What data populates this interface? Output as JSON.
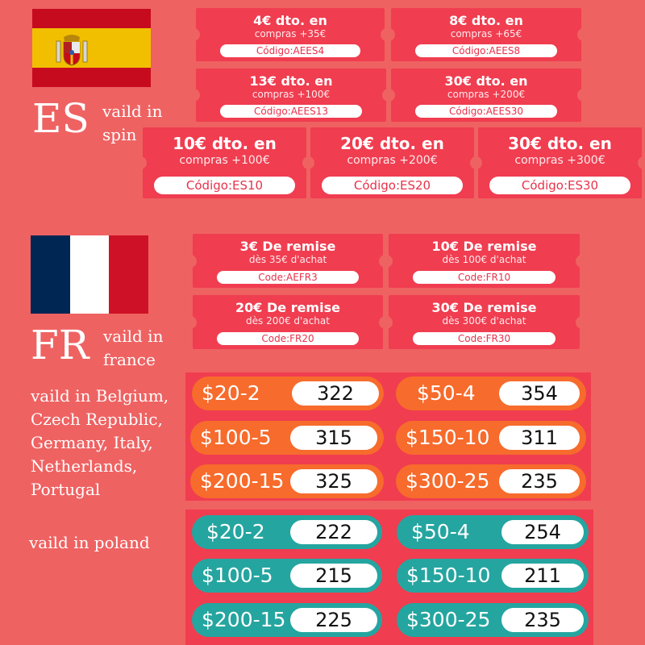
{
  "colors": {
    "background": "#ef6262",
    "coupon_red": "#f03d50",
    "orange_pill": "#f76b2c",
    "teal_pill": "#25a5a0",
    "es_red": "#c60b1e",
    "es_yellow": "#f1bf00",
    "fr_blue": "#002654",
    "fr_white": "#ffffff",
    "fr_red": "#ce1126"
  },
  "spain": {
    "country_code": "ES",
    "valid_text": "vaild in\nspin",
    "coupons_small": [
      {
        "title": "4€ dto. en",
        "subtitle": "compras +35€",
        "code": "Código:AEES4"
      },
      {
        "title": "8€ dto. en",
        "subtitle": "compras +65€",
        "code": "Código:AEES8"
      },
      {
        "title": "13€ dto. en",
        "subtitle": "compras +100€",
        "code": "Código:AEES13"
      },
      {
        "title": "30€ dto. en",
        "subtitle": "compras +200€",
        "code": "Código:AEES30"
      }
    ],
    "coupons_large": [
      {
        "title": "10€ dto. en",
        "subtitle": "compras +100€",
        "code": "Código:ES10"
      },
      {
        "title": "20€ dto. en",
        "subtitle": "compras +200€",
        "code": "Código:ES20"
      },
      {
        "title": "30€ dto. en",
        "subtitle": "compras +300€",
        "code": "Código:ES30"
      }
    ]
  },
  "france": {
    "country_code": "FR",
    "valid_text": "vaild in\nfrance",
    "coupons": [
      {
        "title": "3€ De remise",
        "subtitle": "dès 35€ d'achat",
        "code": "Code:AEFR3"
      },
      {
        "title": "10€ De remise",
        "subtitle": "dès 100€ d'achat",
        "code": "Code:FR10"
      },
      {
        "title": "20€ De remise",
        "subtitle": "dès 200€ d'achat",
        "code": "Code:FR20"
      },
      {
        "title": "30€ De remise",
        "subtitle": "dès 300€ d'achat",
        "code": "Code:FR30"
      }
    ]
  },
  "europe": {
    "valid_text": "vaild in Belgium,\nCzech Republic,\nGermany, Italy,\nNetherlands,\nPortugal",
    "codes": [
      {
        "range": "$20-2",
        "code": "322"
      },
      {
        "range": "$50-4",
        "code": "354"
      },
      {
        "range": "$100-5",
        "code": "315"
      },
      {
        "range": "$150-10",
        "code": "311"
      },
      {
        "range": "$200-15",
        "code": "325"
      },
      {
        "range": "$300-25",
        "code": "235"
      }
    ]
  },
  "poland": {
    "valid_text": "vaild in poland",
    "codes": [
      {
        "range": "$20-2",
        "code": "222"
      },
      {
        "range": "$50-4",
        "code": "254"
      },
      {
        "range": "$100-5",
        "code": "215"
      },
      {
        "range": "$150-10",
        "code": "211"
      },
      {
        "range": "$200-15",
        "code": "225"
      },
      {
        "range": "$300-25",
        "code": "235"
      }
    ]
  }
}
